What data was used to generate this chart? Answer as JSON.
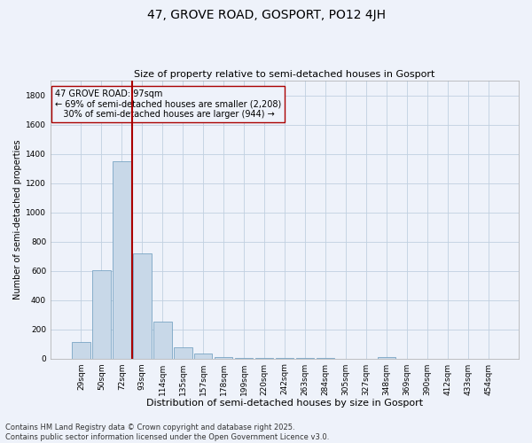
{
  "title": "47, GROVE ROAD, GOSPORT, PO12 4JH",
  "subtitle": "Size of property relative to semi-detached houses in Gosport",
  "xlabel": "Distribution of semi-detached houses by size in Gosport",
  "ylabel": "Number of semi-detached properties",
  "categories": [
    "29sqm",
    "50sqm",
    "72sqm",
    "93sqm",
    "114sqm",
    "135sqm",
    "157sqm",
    "178sqm",
    "199sqm",
    "220sqm",
    "242sqm",
    "263sqm",
    "284sqm",
    "305sqm",
    "327sqm",
    "348sqm",
    "369sqm",
    "390sqm",
    "412sqm",
    "433sqm",
    "454sqm"
  ],
  "values": [
    110,
    605,
    1350,
    720,
    250,
    75,
    35,
    10,
    5,
    5,
    5,
    2,
    2,
    0,
    0,
    8,
    0,
    0,
    0,
    0,
    0
  ],
  "bar_color": "#c8d8e8",
  "bar_edge_color": "#6699bb",
  "vline_color": "#aa0000",
  "annotation_line1": "47 GROVE ROAD: 97sqm",
  "annotation_line2": "← 69% of semi-detached houses are smaller (2,208)",
  "annotation_line3": "   30% of semi-detached houses are larger (944) →",
  "annotation_box_color": "#aa0000",
  "grid_color": "#c0d0e0",
  "background_color": "#eef2fa",
  "ylim": [
    0,
    1900
  ],
  "yticks": [
    0,
    200,
    400,
    600,
    800,
    1000,
    1200,
    1400,
    1600,
    1800
  ],
  "footer_line1": "Contains HM Land Registry data © Crown copyright and database right 2025.",
  "footer_line2": "Contains public sector information licensed under the Open Government Licence v3.0.",
  "title_fontsize": 10,
  "subtitle_fontsize": 8,
  "xlabel_fontsize": 8,
  "ylabel_fontsize": 7,
  "tick_fontsize": 6.5,
  "footer_fontsize": 6,
  "annot_fontsize": 7
}
